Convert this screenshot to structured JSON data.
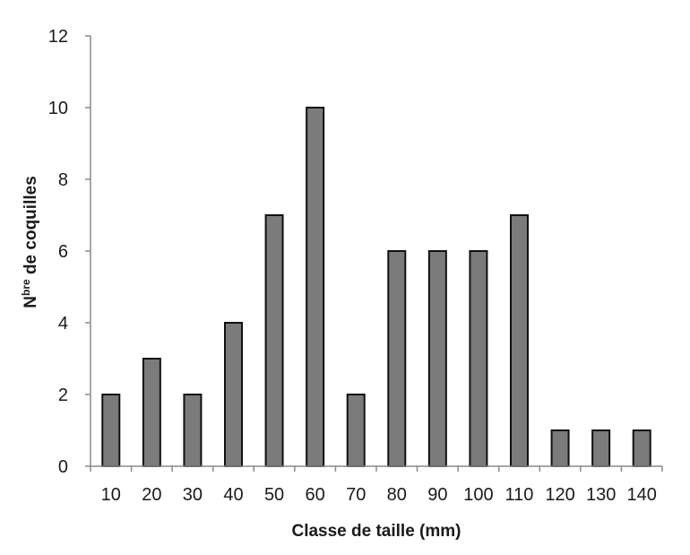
{
  "chart_data": {
    "type": "bar",
    "categories": [
      "10",
      "20",
      "30",
      "40",
      "50",
      "60",
      "70",
      "80",
      "90",
      "100",
      "110",
      "120",
      "130",
      "140"
    ],
    "values": [
      2,
      3,
      2,
      4,
      7,
      10,
      2,
      6,
      6,
      6,
      7,
      1,
      1,
      1
    ],
    "xlabel": "Classe de taille (mm)",
    "ylabel": {
      "prefix": "N",
      "superscript": "bre",
      "suffix": " de coquilles"
    },
    "ylim": [
      0,
      12
    ],
    "yticks": [
      "0",
      "2",
      "4",
      "6",
      "8",
      "10",
      "12"
    ],
    "grid": false,
    "colors": {
      "bar_fill": "#7b7b7b",
      "bar_stroke": "#111111",
      "axis": "#8a8a8a"
    }
  }
}
